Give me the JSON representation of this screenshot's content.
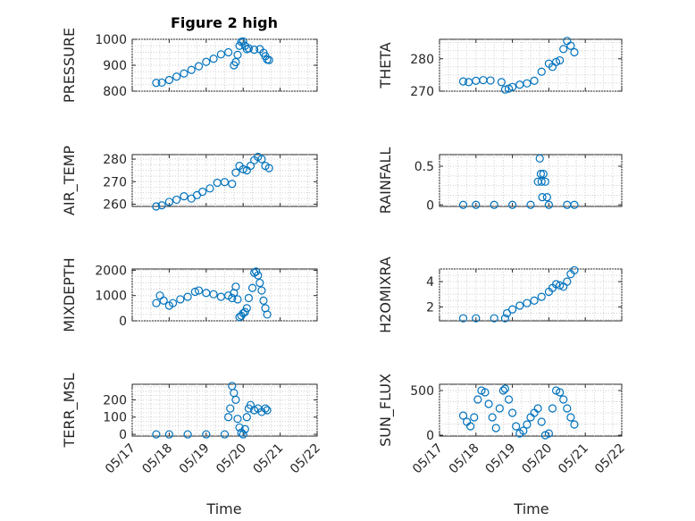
{
  "figure": {
    "title": "Figure 2 high",
    "xlabel": "Time",
    "marker_color": "#0072BD"
  },
  "chart_data": [
    {
      "name": "PRESSURE",
      "type": "scatter",
      "title": "Figure 2 high",
      "ylabel": "PRESSURE",
      "ylim": [
        800,
        1000
      ],
      "yticks": [
        800,
        900,
        1000
      ],
      "ytick_labels": [
        "800",
        "900",
        "1000"
      ],
      "xlim": [
        0,
        5
      ],
      "xticks": [
        0,
        1,
        2,
        3,
        4,
        5
      ],
      "xtick_labels": [],
      "grid": true,
      "x": [
        0.65,
        0.8,
        1.0,
        1.2,
        1.4,
        1.6,
        1.8,
        2.0,
        2.2,
        2.4,
        2.6,
        2.75,
        2.8,
        2.85,
        2.9,
        2.95,
        3.0,
        3.05,
        3.1,
        3.15,
        3.3,
        3.45,
        3.55,
        3.6,
        3.65,
        3.7
      ],
      "y": [
        832,
        833,
        843,
        856,
        868,
        882,
        896,
        913,
        925,
        942,
        950,
        900,
        912,
        940,
        975,
        990,
        992,
        975,
        962,
        965,
        960,
        962,
        948,
        935,
        922,
        920
      ]
    },
    {
      "name": "THETA",
      "type": "scatter",
      "ylabel": "THETA",
      "ylim": [
        270,
        286
      ],
      "yticks": [
        270,
        280
      ],
      "ytick_labels": [
        "270",
        "280"
      ],
      "xlim": [
        0,
        5
      ],
      "xticks": [
        0,
        1,
        2,
        3,
        4,
        5
      ],
      "xtick_labels": [],
      "grid": true,
      "x": [
        0.65,
        0.8,
        1.0,
        1.2,
        1.4,
        1.7,
        1.8,
        1.9,
        2.0,
        2.2,
        2.4,
        2.6,
        2.8,
        3.0,
        3.1,
        3.2,
        3.3,
        3.4,
        3.5,
        3.6,
        3.7
      ],
      "y": [
        273,
        272.8,
        273.2,
        273.4,
        273.3,
        272.8,
        270.5,
        270.8,
        271.3,
        272,
        272.4,
        273.2,
        276,
        278.5,
        277.5,
        279,
        279.5,
        283,
        285.5,
        284,
        282
      ]
    },
    {
      "name": "AIR_TEMP",
      "type": "scatter",
      "ylabel": "AIR_TEMP",
      "ylim": [
        259,
        282
      ],
      "yticks": [
        260,
        270,
        280
      ],
      "ytick_labels": [
        "260",
        "270",
        "280"
      ],
      "xlim": [
        0,
        5
      ],
      "xticks": [
        0,
        1,
        2,
        3,
        4,
        5
      ],
      "xtick_labels": [],
      "grid": true,
      "x": [
        0.65,
        0.8,
        1.0,
        1.2,
        1.4,
        1.6,
        1.75,
        1.9,
        2.1,
        2.3,
        2.5,
        2.7,
        2.8,
        2.9,
        3.0,
        3.1,
        3.2,
        3.3,
        3.4,
        3.5,
        3.6,
        3.7
      ],
      "y": [
        259,
        259.5,
        261,
        262,
        263.5,
        262.5,
        264,
        265.5,
        267,
        269.5,
        269.8,
        269,
        274,
        277,
        275.5,
        275,
        277,
        279.5,
        281,
        280,
        277,
        276
      ]
    },
    {
      "name": "RAINFALL",
      "type": "scatter",
      "ylabel": "RAINFALL",
      "ylim": [
        -0.02,
        0.65
      ],
      "yticks": [
        0,
        0.5
      ],
      "ytick_labels": [
        "0",
        "0.5"
      ],
      "xlim": [
        0,
        5
      ],
      "xticks": [
        0,
        1,
        2,
        3,
        4,
        5
      ],
      "xtick_labels": [],
      "grid": true,
      "x": [
        0.65,
        1.0,
        1.5,
        2.0,
        2.5,
        2.7,
        2.75,
        2.78,
        2.8,
        2.82,
        2.85,
        2.9,
        2.95,
        3.0,
        3.5,
        3.7
      ],
      "y": [
        0,
        0,
        0,
        0,
        0,
        0.3,
        0.6,
        0.4,
        0.3,
        0.1,
        0.4,
        0.3,
        0.1,
        0,
        0,
        0
      ]
    },
    {
      "name": "MIXDEPTH",
      "type": "scatter",
      "ylabel": "MIXDEPTH",
      "ylim": [
        0,
        2050
      ],
      "yticks": [
        0,
        1000,
        2000
      ],
      "ytick_labels": [
        "0",
        "1000",
        "2000"
      ],
      "xlim": [
        0,
        5
      ],
      "xticks": [
        0,
        1,
        2,
        3,
        4,
        5
      ],
      "xtick_labels": [],
      "grid": true,
      "x": [
        0.65,
        0.75,
        0.85,
        1.0,
        1.1,
        1.3,
        1.5,
        1.7,
        1.8,
        2.0,
        2.2,
        2.4,
        2.6,
        2.7,
        2.75,
        2.8,
        2.85,
        2.9,
        2.95,
        3.0,
        3.05,
        3.1,
        3.15,
        3.25,
        3.3,
        3.35,
        3.4,
        3.45,
        3.5,
        3.55,
        3.6,
        3.65
      ],
      "y": [
        700,
        1000,
        800,
        600,
        700,
        850,
        950,
        1150,
        1200,
        1100,
        1050,
        950,
        1000,
        900,
        1100,
        1350,
        850,
        150,
        200,
        300,
        350,
        500,
        900,
        1300,
        1900,
        1950,
        1800,
        1500,
        1200,
        800,
        500,
        250
      ]
    },
    {
      "name": "H2OMIXRA",
      "type": "scatter",
      "ylabel": "H2OMIXRA",
      "ylim": [
        0.9,
        5
      ],
      "yticks": [
        2,
        4
      ],
      "ytick_labels": [
        "2",
        "4"
      ],
      "xlim": [
        0,
        5
      ],
      "xticks": [
        0,
        1,
        2,
        3,
        4,
        5
      ],
      "xtick_labels": [],
      "grid": true,
      "x": [
        0.65,
        1.0,
        1.5,
        1.8,
        1.85,
        2.0,
        2.2,
        2.4,
        2.6,
        2.8,
        3.0,
        3.1,
        3.2,
        3.3,
        3.4,
        3.5,
        3.6,
        3.7
      ],
      "y": [
        1.1,
        1.1,
        1.1,
        1.1,
        1.5,
        1.8,
        2.1,
        2.3,
        2.5,
        2.8,
        3.2,
        3.5,
        3.8,
        3.7,
        3.6,
        4.0,
        4.6,
        4.9
      ]
    },
    {
      "name": "TERR_MSL",
      "type": "scatter",
      "ylabel": "TERR_MSL",
      "ylim": [
        -10,
        290
      ],
      "yticks": [
        0,
        100,
        200
      ],
      "ytick_labels": [
        "0",
        "100",
        "200"
      ],
      "xlim": [
        0,
        5
      ],
      "xticks": [
        0,
        1,
        2,
        3,
        4,
        5
      ],
      "xtick_labels": [
        "05/17",
        "05/18",
        "05/19",
        "05/20",
        "05/21",
        "05/22"
      ],
      "grid": true,
      "x": [
        0.65,
        1.0,
        1.5,
        2.0,
        2.5,
        2.6,
        2.65,
        2.7,
        2.75,
        2.8,
        2.85,
        2.9,
        2.95,
        3.0,
        3.05,
        3.1,
        3.15,
        3.2,
        3.3,
        3.4,
        3.5,
        3.6,
        3.65
      ],
      "y": [
        0,
        0,
        0,
        0,
        0,
        100,
        150,
        280,
        240,
        200,
        90,
        40,
        10,
        0,
        30,
        100,
        150,
        170,
        140,
        150,
        130,
        150,
        140
      ]
    },
    {
      "name": "SUN_FLUX",
      "type": "scatter",
      "ylabel": "SUN_FLUX",
      "ylim": [
        -10,
        570
      ],
      "yticks": [
        0,
        500
      ],
      "ytick_labels": [
        "0",
        "500"
      ],
      "xlim": [
        0,
        5
      ],
      "xticks": [
        0,
        1,
        2,
        3,
        4,
        5
      ],
      "xtick_labels": [
        "05/17",
        "05/18",
        "05/19",
        "05/20",
        "05/21",
        "05/22"
      ],
      "grid": true,
      "x": [
        0.65,
        0.75,
        0.85,
        0.95,
        1.05,
        1.15,
        1.25,
        1.35,
        1.45,
        1.55,
        1.65,
        1.75,
        1.8,
        1.9,
        2.0,
        2.1,
        2.2,
        2.3,
        2.4,
        2.5,
        2.6,
        2.7,
        2.8,
        2.9,
        3.0,
        3.1,
        3.2,
        3.3,
        3.4,
        3.5,
        3.6,
        3.7
      ],
      "y": [
        220,
        150,
        100,
        200,
        400,
        500,
        480,
        350,
        200,
        80,
        300,
        500,
        520,
        400,
        250,
        100,
        20,
        50,
        120,
        200,
        250,
        300,
        150,
        0,
        20,
        300,
        500,
        480,
        400,
        300,
        200,
        120
      ]
    }
  ]
}
